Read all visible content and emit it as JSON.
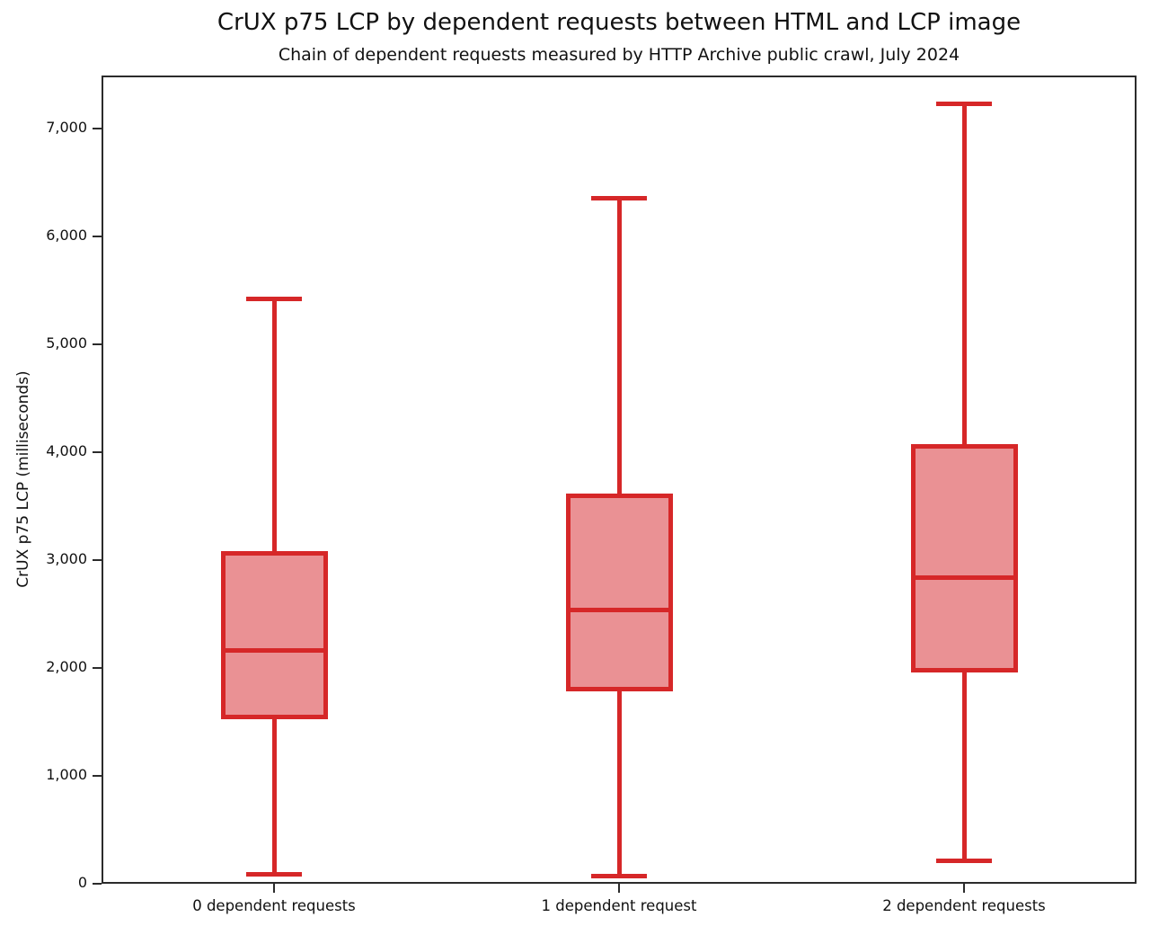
{
  "header": {
    "title": "CrUX p75 LCP by dependent requests between HTML and LCP image",
    "subtitle": "Chain of dependent requests measured by HTTP Archive public crawl, July 2024"
  },
  "colors": {
    "box_edge": "#d62728",
    "box_fill": "#ea9194",
    "axis": "#2b2b2b",
    "text": "#111111"
  },
  "chart_data": {
    "type": "boxplot",
    "title": "CrUX p75 LCP by dependent requests between HTML and LCP image",
    "subtitle": "Chain of dependent requests measured by HTTP Archive public crawl, July 2024",
    "xlabel": "",
    "ylabel": "CrUX p75 LCP (milliseconds)",
    "ylim": [
      0,
      7490
    ],
    "grid": false,
    "legend": false,
    "categories": [
      "0 dependent requests",
      "1 dependent request",
      "2 dependent requests"
    ],
    "y_ticks": [
      {
        "value": 0,
        "label": "0"
      },
      {
        "value": 1000,
        "label": "1,000"
      },
      {
        "value": 2000,
        "label": "2,000"
      },
      {
        "value": 3000,
        "label": "3,000"
      },
      {
        "value": 4000,
        "label": "4,000"
      },
      {
        "value": 5000,
        "label": "5,000"
      },
      {
        "value": 6000,
        "label": "6,000"
      },
      {
        "value": 7000,
        "label": "7,000"
      }
    ],
    "boxes": [
      {
        "category": "0 dependent requests",
        "whisker_low": 85,
        "q1": 1525,
        "median": 2160,
        "q3": 3085,
        "whisker_high": 5420
      },
      {
        "category": "1 dependent request",
        "whisker_low": 70,
        "q1": 1785,
        "median": 2535,
        "q3": 3620,
        "whisker_high": 6350
      },
      {
        "category": "2 dependent requests",
        "whisker_low": 215,
        "q1": 1960,
        "median": 2835,
        "q3": 4070,
        "whisker_high": 7225
      }
    ]
  }
}
